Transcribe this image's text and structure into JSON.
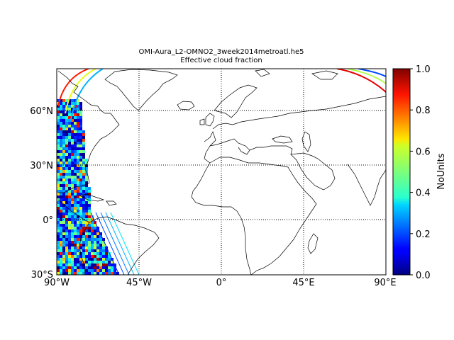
{
  "title": {
    "line1": "OMI-Aura_L2-OMNO2_3week2014metroatl.he5",
    "line2": "Effective cloud fraction"
  },
  "map": {
    "projection": "equirectangular",
    "lon_range": [
      -90,
      90
    ],
    "lat_range": [
      -30,
      83
    ],
    "gridlines": "dotted",
    "background_color": "#ffffff",
    "coastline_color": "#000000"
  },
  "axes": {
    "x_ticks": [
      {
        "value": -90,
        "label": "90°W"
      },
      {
        "value": -45,
        "label": "45°W"
      },
      {
        "value": 0,
        "label": "0°"
      },
      {
        "value": 45,
        "label": "45°E"
      },
      {
        "value": 90,
        "label": "90°E"
      }
    ],
    "y_ticks": [
      {
        "value": 60,
        "label": "60°N"
      },
      {
        "value": 30,
        "label": "30°N"
      },
      {
        "value": 0,
        "label": "0°"
      },
      {
        "value": -30,
        "label": "30°S"
      }
    ]
  },
  "colorbar": {
    "label": "NoUnits",
    "colormap": "jet",
    "range": [
      0.0,
      1.0
    ],
    "ticks": [
      {
        "value": 0.0,
        "label": "0.0"
      },
      {
        "value": 0.2,
        "label": "0.2"
      },
      {
        "value": 0.4,
        "label": "0.4"
      },
      {
        "value": 0.6,
        "label": "0.6"
      },
      {
        "value": 0.8,
        "label": "0.8"
      },
      {
        "value": 1.0,
        "label": "1.0"
      }
    ]
  },
  "chart_data": {
    "type": "heatmap",
    "variable": "Effective cloud fraction",
    "units": "NoUnits",
    "vmin": 0.0,
    "vmax": 1.0,
    "xlabel": "",
    "ylabel": "",
    "xlim": [
      -90,
      90
    ],
    "ylim": [
      -30,
      83
    ],
    "swath_lon_extent_at_equator": [
      -90,
      -62
    ],
    "grid": true
  }
}
